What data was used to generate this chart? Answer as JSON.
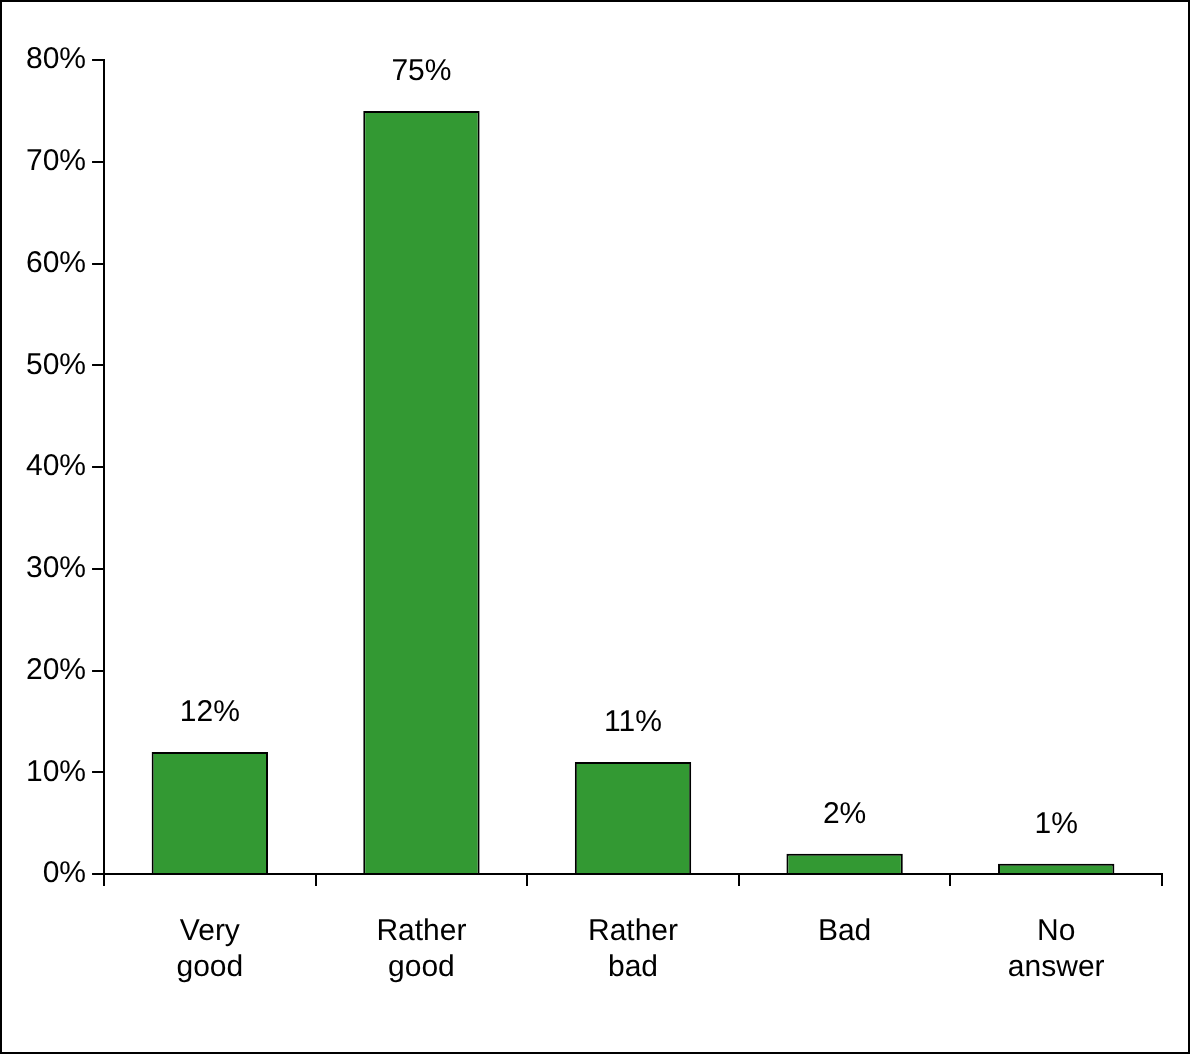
{
  "chart_data": {
    "type": "bar",
    "categories": [
      "Very good",
      "Rather good",
      "Rather bad",
      "Bad",
      "No answer"
    ],
    "values": [
      12,
      75,
      11,
      2,
      1
    ],
    "color": "#339933",
    "value_labels": [
      "12%",
      "75%",
      "11%",
      "2%",
      "1%"
    ],
    "ylim": [
      0,
      80
    ],
    "yticks": [
      {
        "value": 0,
        "label": "0%"
      },
      {
        "value": 10,
        "label": "10%"
      },
      {
        "value": 20,
        "label": "20%"
      },
      {
        "value": 30,
        "label": "30%"
      },
      {
        "value": 40,
        "label": "40%"
      },
      {
        "value": 50,
        "label": "50%"
      },
      {
        "value": 60,
        "label": "60%"
      },
      {
        "value": 70,
        "label": "70%"
      },
      {
        "value": 80,
        "label": "80%"
      }
    ],
    "grid": false,
    "legend": false
  }
}
